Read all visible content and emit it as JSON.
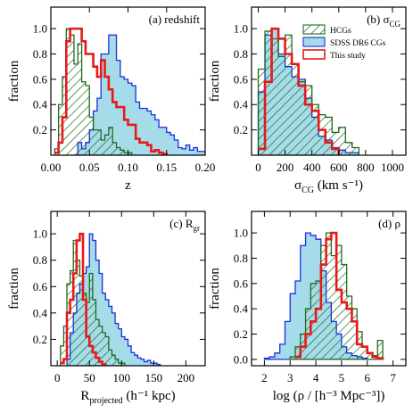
{
  "legend": {
    "entries": [
      {
        "key": "hcg",
        "label": "HCGs"
      },
      {
        "key": "sdss",
        "label": "SDSS DR6 CGs"
      },
      {
        "key": "this",
        "label": "This study"
      }
    ]
  },
  "colors": {
    "hcg": "#1e6b1e",
    "sdss_fill": "#a6dcea",
    "sdss_line": "#1a2ee0",
    "this": "#e61a1a"
  },
  "chart_data": [
    {
      "type": "area",
      "panel_label_main": "(a) redshift",
      "panel_label_sub": "",
      "xlabel_main": "z",
      "xlabel_sub": "",
      "xlabel_rest": "",
      "ylabel": "fraction",
      "xlim": [
        0.0,
        0.2
      ],
      "ylim": [
        0,
        1.17
      ],
      "xticks": [
        0.0,
        0.05,
        0.1,
        0.15,
        0.2
      ],
      "xticklabels": [
        "0.00",
        "0.05",
        "0.10",
        "0.15",
        "0.20"
      ],
      "yticks": [
        0.2,
        0.4,
        0.6,
        0.8,
        1.0
      ],
      "yticklabels": [
        "0.2",
        "0.4",
        "0.6",
        "0.8",
        "1.0"
      ],
      "series": [
        {
          "key": "hcg",
          "x": [
            0.005,
            0.01,
            0.015,
            0.02,
            0.025,
            0.03,
            0.035,
            0.04,
            0.045,
            0.05,
            0.055,
            0.06,
            0.065,
            0.07,
            0.075,
            0.08,
            0.085,
            0.09,
            0.095,
            0.1,
            0.105
          ],
          "values": [
            0.05,
            0.4,
            0.62,
            1.0,
            0.95,
            0.72,
            0.88,
            0.58,
            0.55,
            0.3,
            0.2,
            0.2,
            0.12,
            0.16,
            0.22,
            0.1,
            0.06,
            0.04,
            0.02,
            0.02,
            0.0
          ]
        },
        {
          "key": "sdss",
          "x": [
            0.025,
            0.035,
            0.04,
            0.045,
            0.05,
            0.055,
            0.06,
            0.065,
            0.07,
            0.075,
            0.08,
            0.085,
            0.09,
            0.095,
            0.1,
            0.105,
            0.11,
            0.115,
            0.12,
            0.125,
            0.13,
            0.135,
            0.14,
            0.145,
            0.15,
            0.155,
            0.16,
            0.165,
            0.17,
            0.175,
            0.18,
            0.185,
            0.19,
            0.2,
            0.205
          ],
          "values": [
            0.0,
            0.1,
            0.05,
            0.1,
            0.2,
            0.35,
            0.45,
            0.8,
            0.8,
            0.95,
            0.95,
            0.75,
            0.62,
            0.6,
            0.57,
            0.55,
            0.42,
            0.37,
            0.37,
            0.35,
            0.32,
            0.28,
            0.22,
            0.22,
            0.18,
            0.16,
            0.12,
            0.06,
            0.05,
            0.08,
            0.04,
            0.06,
            0.03,
            0.02,
            0.0
          ]
        },
        {
          "key": "this",
          "x": [
            0.005,
            0.01,
            0.015,
            0.02,
            0.025,
            0.03,
            0.035,
            0.04,
            0.045,
            0.05,
            0.055,
            0.06,
            0.065,
            0.07,
            0.075,
            0.08,
            0.085,
            0.09,
            0.095,
            0.1,
            0.105,
            0.11,
            0.115,
            0.12,
            0.125,
            0.13,
            0.135,
            0.14,
            0.145,
            0.15
          ],
          "values": [
            0.02,
            0.1,
            0.3,
            0.9,
            1.0,
            1.0,
            1.0,
            0.9,
            0.8,
            0.8,
            0.7,
            0.62,
            0.75,
            0.62,
            0.52,
            0.42,
            0.38,
            0.38,
            0.28,
            0.24,
            0.24,
            0.13,
            0.1,
            0.1,
            0.08,
            0.03,
            0.04,
            0.02,
            0.01,
            0.0
          ]
        }
      ]
    },
    {
      "type": "area",
      "panel_label_main": "(b) σ",
      "panel_label_sub": "CG",
      "xlabel_main": "σ",
      "xlabel_sub": "CG",
      "xlabel_rest": " (km s⁻¹)",
      "ylabel": "fraction",
      "xlim": [
        -50,
        1100
      ],
      "ylim": [
        0,
        1.17
      ],
      "xticks": [
        0,
        200,
        400,
        600,
        800,
        1000
      ],
      "xticklabels": [
        "0",
        "200",
        "400",
        "600",
        "800",
        "1000"
      ],
      "yticks": [
        0.2,
        0.4,
        0.6,
        0.8,
        1.0
      ],
      "yticklabels": [
        "0.2",
        "0.4",
        "0.6",
        "0.8",
        "1.0"
      ],
      "series": [
        {
          "key": "hcg",
          "x": [
            0,
            50,
            100,
            150,
            200,
            250,
            300,
            350,
            400,
            450,
            500,
            550,
            600,
            650,
            700,
            750
          ],
          "values": [
            0.68,
            0.98,
            0.92,
            0.78,
            0.95,
            0.72,
            0.58,
            0.55,
            0.4,
            0.32,
            0.3,
            0.18,
            0.22,
            0.1,
            0.06,
            0.0
          ]
        },
        {
          "key": "sdss",
          "x": [
            0,
            50,
            100,
            150,
            200,
            250,
            300,
            350,
            400,
            450,
            500,
            550,
            600,
            650,
            700,
            750
          ],
          "values": [
            0.5,
            0.95,
            1.0,
            0.8,
            0.7,
            0.62,
            0.6,
            0.45,
            0.3,
            0.15,
            0.12,
            0.06,
            0.04,
            0.02,
            0.02,
            0.0
          ]
        },
        {
          "key": "this",
          "x": [
            0,
            50,
            100,
            150,
            200,
            250,
            300,
            350,
            400,
            450,
            500,
            550,
            600
          ],
          "values": [
            0.05,
            0.58,
            1.0,
            0.92,
            0.8,
            0.72,
            0.55,
            0.4,
            0.35,
            0.2,
            0.1,
            0.05,
            0.0
          ]
        }
      ]
    },
    {
      "type": "area",
      "panel_label_main": "(c) R",
      "panel_label_sub": "gr",
      "xlabel_main": "R",
      "xlabel_sub": "projected",
      "xlabel_rest": " (h⁻¹ kpc)",
      "ylabel": "fraction",
      "xlim": [
        -10,
        230
      ],
      "ylim": [
        0,
        1.17
      ],
      "xticks": [
        0,
        50,
        100,
        150,
        200
      ],
      "xticklabels": [
        "0",
        "50",
        "100",
        "150",
        "200"
      ],
      "yticks": [
        0.2,
        0.4,
        0.6,
        0.8,
        1.0
      ],
      "yticklabels": [
        "0.2",
        "0.4",
        "0.6",
        "0.8",
        "1.0"
      ],
      "series": [
        {
          "key": "hcg",
          "x": [
            5,
            10,
            15,
            20,
            25,
            30,
            35,
            40,
            45,
            50,
            55,
            60,
            65,
            70,
            75,
            80,
            85,
            90,
            95,
            100,
            105
          ],
          "values": [
            0.15,
            0.3,
            0.62,
            0.72,
            0.95,
            0.8,
            0.68,
            0.55,
            0.48,
            0.7,
            0.5,
            0.35,
            0.3,
            0.25,
            0.22,
            0.12,
            0.08,
            0.05,
            0.02,
            0.02,
            0.0
          ]
        },
        {
          "key": "sdss",
          "x": [
            15,
            20,
            25,
            30,
            35,
            40,
            45,
            50,
            55,
            60,
            65,
            70,
            75,
            80,
            85,
            90,
            95,
            100,
            105,
            110,
            115,
            120,
            125,
            130,
            135,
            140,
            145,
            150,
            155,
            160
          ],
          "values": [
            0.05,
            0.25,
            0.4,
            0.55,
            0.62,
            0.7,
            0.75,
            1.0,
            0.95,
            0.8,
            0.7,
            0.55,
            0.5,
            0.45,
            0.4,
            0.32,
            0.28,
            0.22,
            0.2,
            0.15,
            0.1,
            0.08,
            0.06,
            0.05,
            0.03,
            0.04,
            0.02,
            0.02,
            0.01,
            0.0
          ]
        },
        {
          "key": "this",
          "x": [
            5,
            10,
            15,
            20,
            25,
            30,
            35,
            40,
            45,
            50,
            55,
            60,
            65,
            70,
            75
          ],
          "values": [
            0.02,
            0.05,
            0.4,
            0.5,
            0.7,
            0.95,
            1.0,
            0.5,
            0.22,
            0.15,
            0.1,
            0.06,
            0.03,
            0.01,
            0.0
          ]
        }
      ]
    },
    {
      "type": "area",
      "panel_label_main": "(d) ρ",
      "panel_label_sub": "",
      "xlabel_main": "log (ρ / [h⁻³ Mpc⁻³])",
      "xlabel_sub": "",
      "xlabel_rest": "",
      "ylabel": "fraction",
      "xlim": [
        1.5,
        7.5
      ],
      "ylim": [
        -0.05,
        1.17
      ],
      "xticks": [
        2,
        3,
        4,
        5,
        6,
        7
      ],
      "xticklabels": [
        "2",
        "3",
        "4",
        "5",
        "6",
        "7"
      ],
      "yticks": [
        0.0,
        0.2,
        0.4,
        0.6,
        0.8,
        1.0
      ],
      "yticklabels": [
        "0.0",
        "0.2",
        "0.4",
        "0.6",
        "0.8",
        "1.0"
      ],
      "series": [
        {
          "key": "hcg",
          "x": [
            3.0,
            3.2,
            3.4,
            3.6,
            3.8,
            4.0,
            4.2,
            4.4,
            4.6,
            4.8,
            5.0,
            5.2,
            5.4,
            5.6,
            5.8,
            6.0,
            6.2,
            6.4,
            6.6
          ],
          "values": [
            0.02,
            0.1,
            0.2,
            0.4,
            0.6,
            0.62,
            0.9,
            1.0,
            0.82,
            0.9,
            0.75,
            0.5,
            0.4,
            0.22,
            0.1,
            0.05,
            0.03,
            0.15,
            0.0
          ]
        },
        {
          "key": "sdss",
          "x": [
            2.0,
            2.2,
            2.4,
            2.6,
            2.8,
            3.0,
            3.2,
            3.4,
            3.6,
            3.8,
            4.0,
            4.2,
            4.4,
            4.6,
            4.8,
            5.0,
            5.2,
            5.4,
            5.6,
            5.8,
            6.0
          ],
          "values": [
            0.01,
            0.02,
            0.05,
            0.12,
            0.3,
            0.52,
            0.62,
            0.9,
            1.0,
            0.98,
            0.95,
            0.7,
            0.45,
            0.3,
            0.2,
            0.1,
            0.05,
            0.03,
            0.02,
            0.01,
            0.0
          ]
        },
        {
          "key": "this",
          "x": [
            3.2,
            3.4,
            3.6,
            3.8,
            4.0,
            4.2,
            4.4,
            4.6,
            4.8,
            5.0,
            5.2,
            5.4,
            5.6,
            5.8,
            6.0,
            6.2,
            6.4,
            6.6
          ],
          "values": [
            0.02,
            0.1,
            0.2,
            0.3,
            0.4,
            0.75,
            0.95,
            1.0,
            0.55,
            0.45,
            0.4,
            0.3,
            0.12,
            0.1,
            0.05,
            0.02,
            0.01,
            0.0
          ]
        }
      ]
    }
  ]
}
